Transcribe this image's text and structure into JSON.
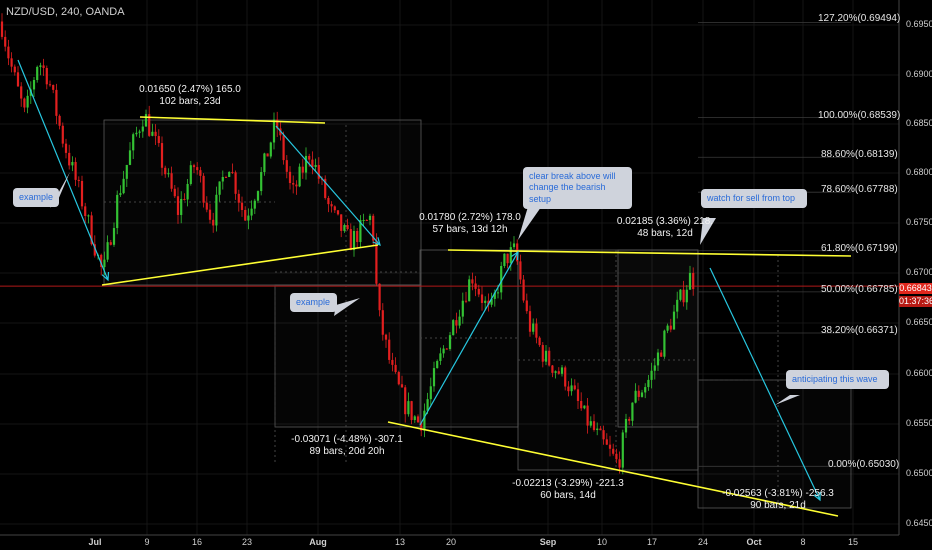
{
  "header": {
    "title": "NZD/USD, 240, OANDA"
  },
  "chart_data": {
    "type": "candlestick",
    "symbol": "NZD/USD",
    "interval": "240",
    "source": "OANDA",
    "colors": {
      "up": "#34c234",
      "down": "#e21f1f",
      "background": "#000000",
      "trendline": "#ffff33",
      "arrow": "#27c7e0",
      "current_price_line": "#b01818"
    },
    "price_axis": {
      "min": 0.6465,
      "max": 0.6967,
      "ticks": [
        "0.69500",
        "0.69000",
        "0.68500",
        "0.68000",
        "0.67500",
        "0.67000",
        "0.66500",
        "0.66000",
        "0.65500",
        "0.65000",
        "0.64500"
      ]
    },
    "time_axis": {
      "ticks": [
        "Jul",
        "9",
        "16",
        "23",
        "Aug",
        "13",
        "20",
        "Sep",
        "10",
        "17",
        "24",
        "Oct",
        "8",
        "15"
      ]
    },
    "current_price": {
      "value": "0.66843",
      "countdown": "01:37:36"
    },
    "price_path": [
      [
        0,
        0.6955
      ],
      [
        10,
        0.691
      ],
      [
        25,
        0.6855
      ],
      [
        38,
        0.6912
      ],
      [
        48,
        0.6895
      ],
      [
        62,
        0.6835
      ],
      [
        82,
        0.677
      ],
      [
        103,
        0.6695
      ],
      [
        118,
        0.6775
      ],
      [
        132,
        0.6825
      ],
      [
        144,
        0.6858
      ],
      [
        160,
        0.6815
      ],
      [
        178,
        0.676
      ],
      [
        195,
        0.6808
      ],
      [
        212,
        0.675
      ],
      [
        228,
        0.6812
      ],
      [
        245,
        0.6752
      ],
      [
        262,
        0.6798
      ],
      [
        276,
        0.685
      ],
      [
        292,
        0.6775
      ],
      [
        310,
        0.682
      ],
      [
        330,
        0.676
      ],
      [
        350,
        0.6728
      ],
      [
        372,
        0.6755
      ],
      [
        378,
        0.6658
      ],
      [
        392,
        0.6598
      ],
      [
        405,
        0.6565
      ],
      [
        420,
        0.6545
      ],
      [
        438,
        0.6605
      ],
      [
        455,
        0.6652
      ],
      [
        472,
        0.6695
      ],
      [
        490,
        0.6655
      ],
      [
        505,
        0.6712
      ],
      [
        515,
        0.672
      ],
      [
        528,
        0.6648
      ],
      [
        545,
        0.6612
      ],
      [
        565,
        0.6592
      ],
      [
        585,
        0.6552
      ],
      [
        600,
        0.653
      ],
      [
        618,
        0.6505
      ],
      [
        632,
        0.6568
      ],
      [
        650,
        0.6592
      ],
      [
        668,
        0.6642
      ],
      [
        690,
        0.6693
      ],
      [
        695,
        0.6688
      ]
    ],
    "fib_levels": [
      {
        "label": "127.20%(0.69494)",
        "value": 0.69494
      },
      {
        "label": "100.00%(0.68539)",
        "value": 0.68539
      },
      {
        "label": "88.60%(0.68139)",
        "value": 0.68139
      },
      {
        "label": "78.60%(0.67788)",
        "value": 0.67788
      },
      {
        "label": "61.80%(0.67199)",
        "value": 0.67199
      },
      {
        "label": "50.00%(0.66785)",
        "value": 0.66785
      },
      {
        "label": "38.20%(0.66371)",
        "value": 0.66371
      },
      {
        "label": "0.00%(0.65030)",
        "value": 0.6503
      }
    ],
    "measurements": [
      {
        "line1": "0.01650 (2.47%) 165.0",
        "line2": "102 bars, 23d"
      },
      {
        "line1": "0.01780 (2.72%) 178.0",
        "line2": "57 bars, 13d 12h"
      },
      {
        "line1": "0.02185 (3.36%) 218.",
        "line2": "48 bars, 12d"
      },
      {
        "line1": "-0.03071 (-4.48%) -307.1",
        "line2": "89 bars, 20d 20h"
      },
      {
        "line1": "-0.02213 (-3.29%) -221.3",
        "line2": "60 bars, 14d"
      },
      {
        "line1": "-0.02563 (-3.81%) -256.3",
        "line2": "90 bars, 21d"
      }
    ],
    "annotations": [
      "example",
      "example",
      "clear break above will change the bearish setup",
      "watch for sell from top",
      "anticipating this wave"
    ]
  }
}
